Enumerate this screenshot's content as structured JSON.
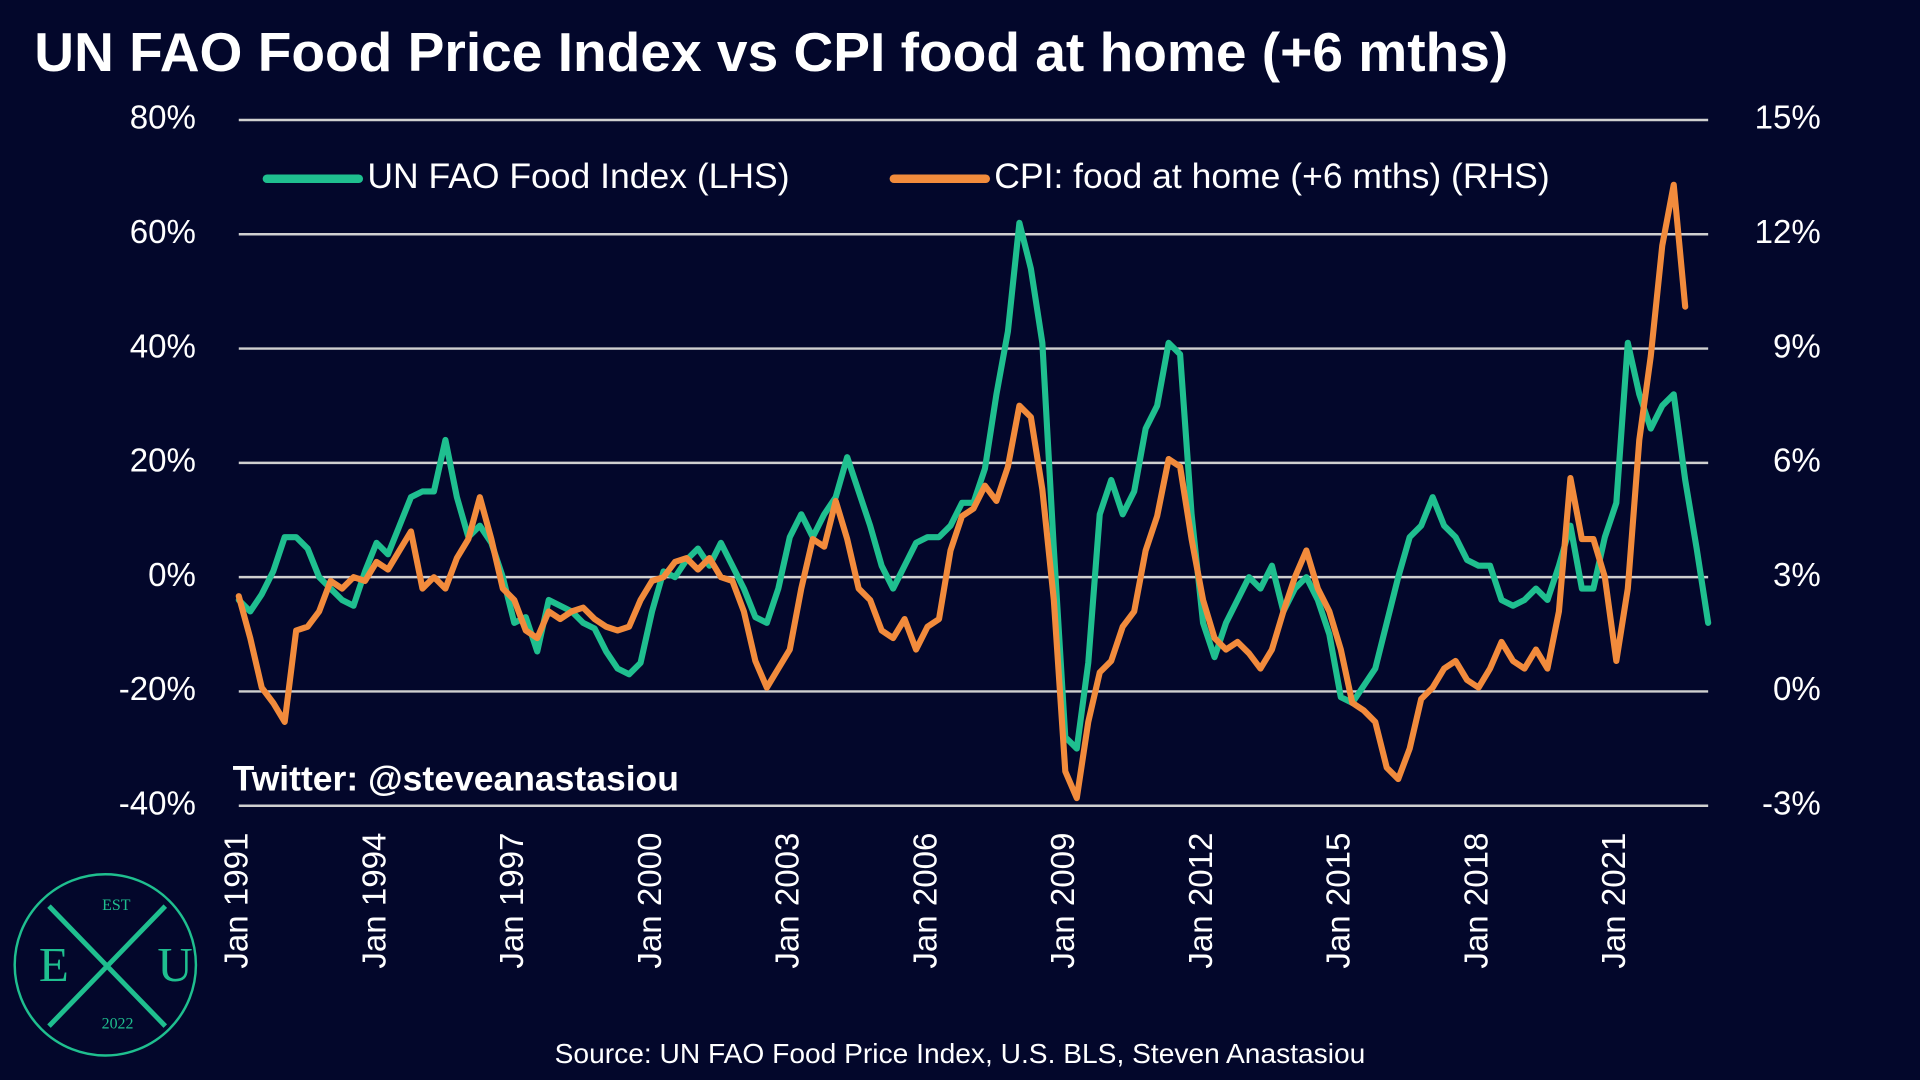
{
  "chart_data": {
    "type": "line",
    "title": "UN FAO Food Price Index vs CPI food at home (+6 mths)",
    "annotation": "Twitter: @steveanastasiou",
    "source": "Source: UN FAO Food Price Index, U.S. BLS, Steven Anastasiou",
    "logo": {
      "top": "EST",
      "left": "E",
      "right": "U",
      "bottom": "2022"
    },
    "legend": "top",
    "grid": true,
    "xlim": [
      1991,
      2023
    ],
    "xticks": [
      {
        "value": 1991,
        "label": "Jan 1991"
      },
      {
        "value": 1994,
        "label": "Jan 1994"
      },
      {
        "value": 1997,
        "label": "Jan 1997"
      },
      {
        "value": 2000,
        "label": "Jan 2000"
      },
      {
        "value": 2003,
        "label": "Jan 2003"
      },
      {
        "value": 2006,
        "label": "Jan 2006"
      },
      {
        "value": 2009,
        "label": "Jan 2009"
      },
      {
        "value": 2012,
        "label": "Jan 2012"
      },
      {
        "value": 2015,
        "label": "Jan 2015"
      },
      {
        "value": 2018,
        "label": "Jan 2018"
      },
      {
        "value": 2021,
        "label": "Jan 2021"
      }
    ],
    "ylim": [
      -40,
      80
    ],
    "yticks": [
      {
        "value": -40,
        "label": "-40%"
      },
      {
        "value": -20,
        "label": "-20%"
      },
      {
        "value": 0,
        "label": "0%"
      },
      {
        "value": 20,
        "label": "20%"
      },
      {
        "value": 40,
        "label": "40%"
      },
      {
        "value": 60,
        "label": "60%"
      },
      {
        "value": 80,
        "label": "80%"
      }
    ],
    "y2lim": [
      -3,
      15
    ],
    "y2ticks": [
      {
        "value": -3,
        "label": "-3%"
      },
      {
        "value": 0,
        "label": "0%"
      },
      {
        "value": 3,
        "label": "3%"
      },
      {
        "value": 6,
        "label": "6%"
      },
      {
        "value": 9,
        "label": "9%"
      },
      {
        "value": 12,
        "label": "12%"
      },
      {
        "value": 15,
        "label": "15%"
      }
    ],
    "series": [
      {
        "name": "UN FAO Food Index (LHS)",
        "color": "#1fbf8f",
        "axis": "y",
        "x": [
          1991,
          1991.25,
          1991.5,
          1991.75,
          1992,
          1992.25,
          1992.5,
          1992.75,
          1993,
          1993.25,
          1993.5,
          1993.75,
          1994,
          1994.25,
          1994.5,
          1994.75,
          1995,
          1995.25,
          1995.5,
          1995.75,
          1996,
          1996.25,
          1996.5,
          1996.75,
          1997,
          1997.25,
          1997.5,
          1997.75,
          1998,
          1998.25,
          1998.5,
          1998.75,
          1999,
          1999.25,
          1999.5,
          1999.75,
          2000,
          2000.25,
          2000.5,
          2000.75,
          2001,
          2001.25,
          2001.5,
          2001.75,
          2002,
          2002.25,
          2002.5,
          2002.75,
          2003,
          2003.25,
          2003.5,
          2003.75,
          2004,
          2004.25,
          2004.5,
          2004.75,
          2005,
          2005.25,
          2005.5,
          2005.75,
          2006,
          2006.25,
          2006.5,
          2006.75,
          2007,
          2007.25,
          2007.5,
          2007.75,
          2008,
          2008.25,
          2008.5,
          2008.75,
          2009,
          2009.25,
          2009.5,
          2009.75,
          2010,
          2010.25,
          2010.5,
          2010.75,
          2011,
          2011.25,
          2011.5,
          2011.75,
          2012,
          2012.25,
          2012.5,
          2012.75,
          2013,
          2013.25,
          2013.5,
          2013.75,
          2014,
          2014.25,
          2014.5,
          2014.75,
          2015,
          2015.25,
          2015.5,
          2015.75,
          2016,
          2016.25,
          2016.5,
          2016.75,
          2017,
          2017.25,
          2017.5,
          2017.75,
          2018,
          2018.25,
          2018.5,
          2018.75,
          2019,
          2019.25,
          2019.5,
          2019.75,
          2020,
          2020.25,
          2020.5,
          2020.75,
          2021,
          2021.25,
          2021.5,
          2021.75,
          2022,
          2022.25,
          2022.5,
          2022.75,
          2023
        ],
        "values": [
          -4,
          -6,
          -3,
          1,
          7,
          7,
          5,
          0,
          -2,
          -4,
          -5,
          1,
          6,
          4,
          9,
          14,
          15,
          15,
          24,
          14,
          7,
          9,
          6,
          0,
          -8,
          -7,
          -13,
          -4,
          -5,
          -6,
          -8,
          -9,
          -13,
          -16,
          -17,
          -15,
          -6,
          1,
          0,
          3,
          5,
          2,
          6,
          2,
          -2,
          -7,
          -8,
          -2,
          7,
          11,
          7,
          11,
          14,
          21,
          15,
          9,
          2,
          -2,
          2,
          6,
          7,
          7,
          9,
          13,
          13,
          19,
          32,
          43,
          62,
          54,
          41,
          5,
          -28,
          -30,
          -15,
          11,
          17,
          11,
          15,
          26,
          30,
          41,
          39,
          11,
          -8,
          -14,
          -8,
          -4,
          0,
          -2,
          2,
          -6,
          -2,
          0,
          -4,
          -10,
          -21,
          -22,
          -19,
          -16,
          -8,
          0,
          7,
          9,
          14,
          9,
          7,
          3,
          2,
          2,
          -4,
          -5,
          -4,
          -2,
          -4,
          2,
          9,
          -2,
          -2,
          7,
          13,
          41,
          32,
          26,
          30,
          32,
          17,
          5,
          -8
        ]
      },
      {
        "name": "CPI: food at home (+6 mths) (RHS)",
        "color": "#f28b3c",
        "axis": "y2",
        "x": [
          1991,
          1991.25,
          1991.5,
          1991.75,
          1992,
          1992.25,
          1992.5,
          1992.75,
          1993,
          1993.25,
          1993.5,
          1993.75,
          1994,
          1994.25,
          1994.5,
          1994.75,
          1995,
          1995.25,
          1995.5,
          1995.75,
          1996,
          1996.25,
          1996.5,
          1996.75,
          1997,
          1997.25,
          1997.5,
          1997.75,
          1998,
          1998.25,
          1998.5,
          1998.75,
          1999,
          1999.25,
          1999.5,
          1999.75,
          2000,
          2000.25,
          2000.5,
          2000.75,
          2001,
          2001.25,
          2001.5,
          2001.75,
          2002,
          2002.25,
          2002.5,
          2002.75,
          2003,
          2003.25,
          2003.5,
          2003.75,
          2004,
          2004.25,
          2004.5,
          2004.75,
          2005,
          2005.25,
          2005.5,
          2005.75,
          2006,
          2006.25,
          2006.5,
          2006.75,
          2007,
          2007.25,
          2007.5,
          2007.75,
          2008,
          2008.25,
          2008.5,
          2008.75,
          2009,
          2009.25,
          2009.5,
          2009.75,
          2010,
          2010.25,
          2010.5,
          2010.75,
          2011,
          2011.25,
          2011.5,
          2011.75,
          2012,
          2012.25,
          2012.5,
          2012.75,
          2013,
          2013.25,
          2013.5,
          2013.75,
          2014,
          2014.25,
          2014.5,
          2014.75,
          2015,
          2015.25,
          2015.5,
          2015.75,
          2016,
          2016.25,
          2016.5,
          2016.75,
          2017,
          2017.25,
          2017.5,
          2017.75,
          2018,
          2018.25,
          2018.5,
          2018.75,
          2019,
          2019.25,
          2019.5,
          2019.75,
          2020,
          2020.25,
          2020.5,
          2020.75,
          2021,
          2021.25,
          2021.5,
          2021.75,
          2022,
          2022.25,
          2022.5
        ],
        "values": [
          2.5,
          1.4,
          0.1,
          -0.3,
          -0.8,
          1.6,
          1.7,
          2.1,
          2.9,
          2.7,
          3.0,
          2.9,
          3.4,
          3.2,
          3.7,
          4.2,
          2.7,
          3.0,
          2.7,
          3.5,
          4.0,
          5.1,
          4.0,
          2.7,
          2.4,
          1.6,
          1.4,
          2.1,
          1.9,
          2.1,
          2.2,
          1.9,
          1.7,
          1.6,
          1.7,
          2.4,
          2.9,
          3.0,
          3.4,
          3.5,
          3.2,
          3.5,
          3.0,
          2.9,
          2.1,
          0.8,
          0.1,
          0.6,
          1.1,
          2.7,
          4.0,
          3.8,
          5.0,
          4.0,
          2.7,
          2.4,
          1.6,
          1.4,
          1.9,
          1.1,
          1.7,
          1.9,
          3.7,
          4.6,
          4.8,
          5.4,
          5.0,
          5.9,
          7.5,
          7.2,
          5.3,
          2.4,
          -2.1,
          -2.8,
          -0.8,
          0.5,
          0.8,
          1.7,
          2.1,
          3.7,
          4.6,
          6.1,
          5.9,
          4.0,
          2.4,
          1.4,
          1.1,
          1.3,
          1.0,
          0.6,
          1.1,
          2.1,
          3.0,
          3.7,
          2.7,
          2.1,
          1.1,
          -0.3,
          -0.5,
          -0.8,
          -2.0,
          -2.3,
          -1.5,
          -0.2,
          0.1,
          0.6,
          0.8,
          0.3,
          0.1,
          0.6,
          1.3,
          0.8,
          0.6,
          1.1,
          0.6,
          2.1,
          5.6,
          4.0,
          4.0,
          3.0,
          0.8,
          2.7,
          6.6,
          8.8,
          11.7,
          13.3,
          10.1
        ]
      }
    ]
  }
}
